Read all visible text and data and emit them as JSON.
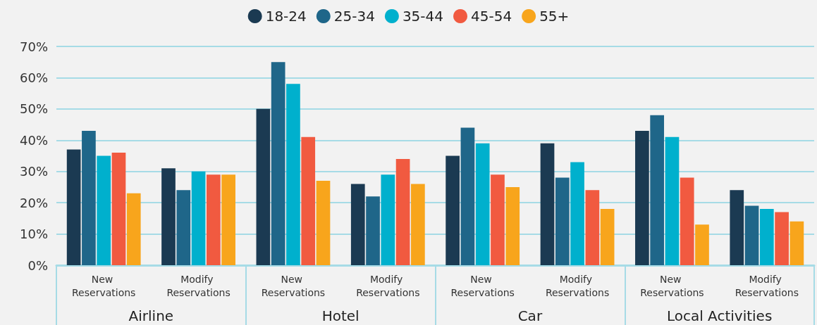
{
  "chart_data": {
    "type": "bar",
    "categories": [
      "New Reservations",
      "Modify Reservations",
      "New Reservations",
      "Modify Reservations",
      "New Reservations",
      "Modify Reservations",
      "New Reservations",
      "Modify Reservations"
    ],
    "annotations": [
      "Airline",
      "Hotel",
      "Car",
      "Local Activities"
    ],
    "series": [
      {
        "name": "18-24",
        "color": "#1b3a52",
        "values": [
          37,
          31,
          50,
          26,
          35,
          39,
          43,
          24
        ]
      },
      {
        "name": "25-34",
        "color": "#1f6689",
        "values": [
          43,
          24,
          65,
          22,
          44,
          28,
          48,
          19
        ]
      },
      {
        "name": "35-44",
        "color": "#00b0cd",
        "values": [
          35,
          30,
          58,
          29,
          39,
          33,
          41,
          18
        ]
      },
      {
        "name": "45-54",
        "color": "#f15a40",
        "values": [
          36,
          29,
          41,
          34,
          29,
          24,
          28,
          17
        ]
      },
      {
        "name": "55+",
        "color": "#f8a51c",
        "values": [
          23,
          29,
          27,
          26,
          25,
          18,
          13,
          14
        ]
      }
    ],
    "ylim": [
      0,
      70
    ],
    "yticks": [
      {
        "value": 0,
        "label": "0%"
      },
      {
        "value": 10,
        "label": "10%"
      },
      {
        "value": 20,
        "label": "20%"
      },
      {
        "value": 30,
        "label": "30%"
      },
      {
        "value": 40,
        "label": "40%"
      },
      {
        "value": 50,
        "label": "50%"
      },
      {
        "value": 60,
        "label": "60%"
      },
      {
        "value": 70,
        "label": "70%"
      }
    ],
    "grid": true,
    "legend": "top"
  }
}
